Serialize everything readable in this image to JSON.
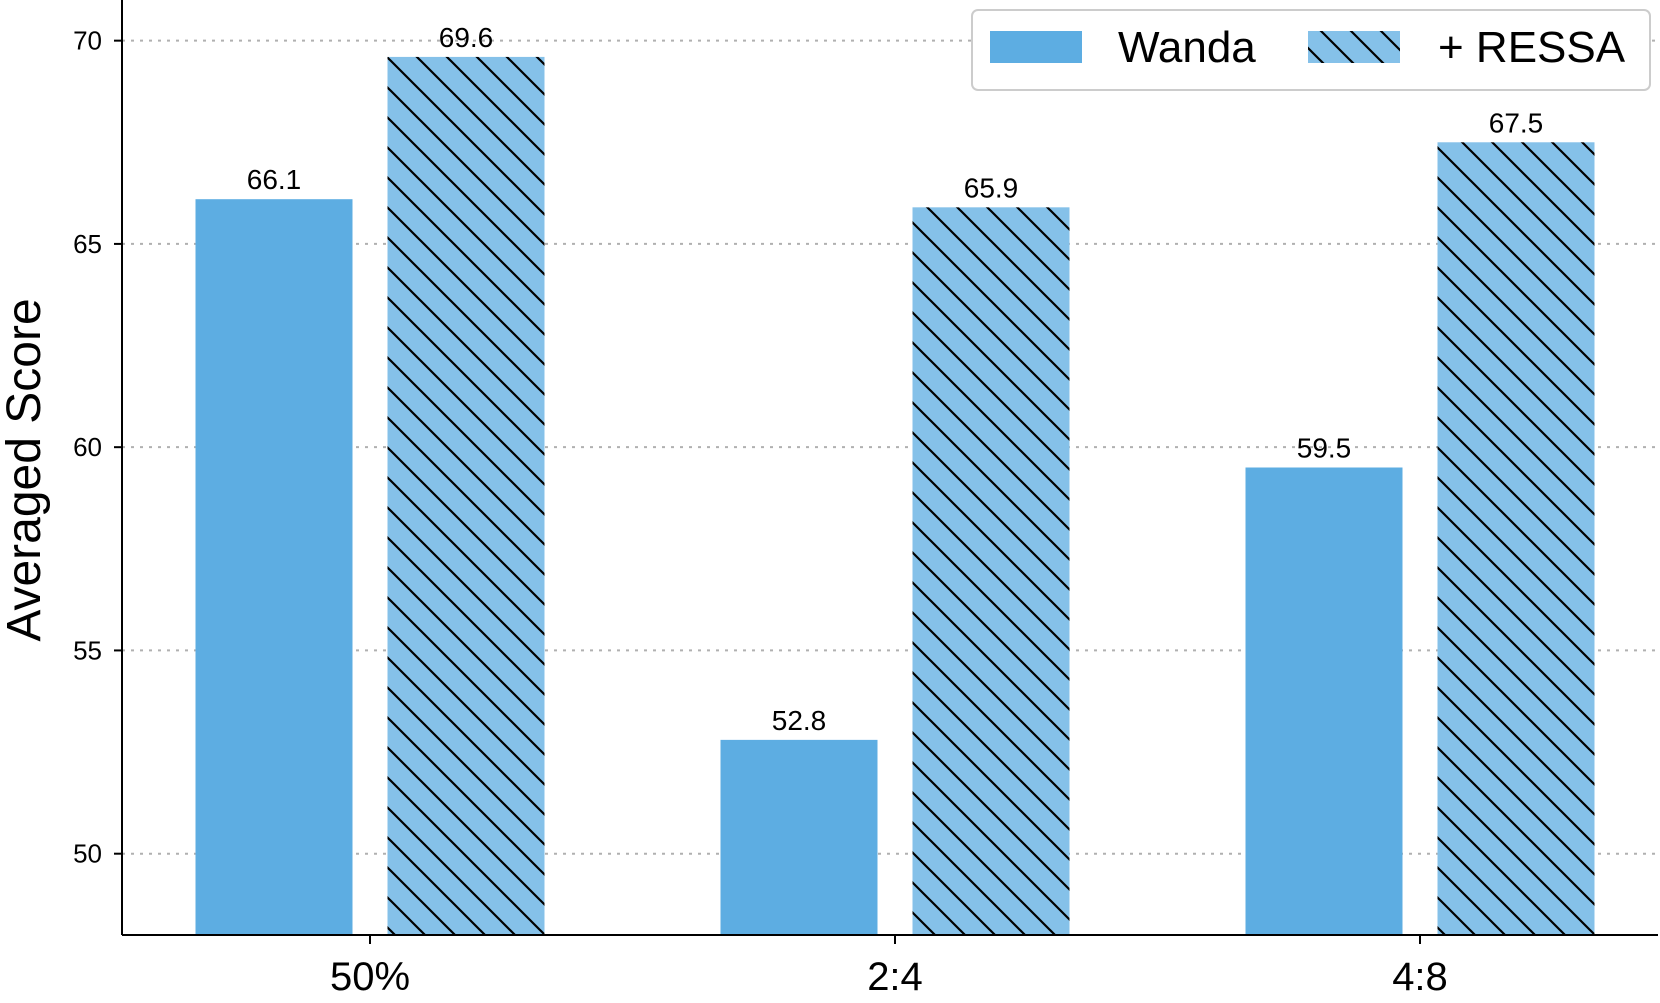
{
  "chart_data": {
    "type": "bar",
    "categories": [
      "50%",
      "2:4",
      "4:8"
    ],
    "series": [
      {
        "name": "Wanda",
        "values": [
          66.1,
          52.8,
          59.5
        ],
        "color": "#5DADE2",
        "hatch": false
      },
      {
        "name": "+ RESSA",
        "values": [
          69.6,
          65.9,
          67.5
        ],
        "color": "#85C1E9",
        "hatch": true
      }
    ],
    "data_labels": [
      [
        "66.1",
        "52.8",
        "59.5"
      ],
      [
        "69.6",
        "65.9",
        "67.5"
      ]
    ],
    "title": "",
    "xlabel": "",
    "ylabel": "Averaged Score",
    "ylim": [
      48,
      71
    ],
    "yticks": [
      50,
      55,
      60,
      65,
      70
    ],
    "grid": "y-dotted",
    "legend_position": "top-right"
  }
}
